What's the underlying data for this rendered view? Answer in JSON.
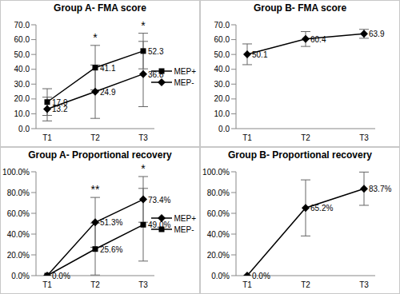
{
  "chart_data": [
    {
      "type": "line",
      "title": "Group A- FMA score",
      "categories": [
        "T1",
        "T2",
        "T3"
      ],
      "series": [
        {
          "name": "MEP+",
          "color": "#000000",
          "marker": "square",
          "values": [
            17.9,
            41.1,
            52.3
          ],
          "errors": [
            9,
            15,
            12
          ]
        },
        {
          "name": "MEP-",
          "color": "#000000",
          "marker": "diamond",
          "values": [
            13.2,
            24.9,
            36.8
          ],
          "errors": [
            8,
            18,
            22
          ]
        }
      ],
      "ylim": [
        0,
        70
      ],
      "yticks": [
        {
          "value": 0,
          "label": "0.0"
        },
        {
          "value": 10,
          "label": "10.0"
        },
        {
          "value": 20,
          "label": "20.0"
        },
        {
          "value": 30,
          "label": "30.0"
        },
        {
          "value": 40,
          "label": "40.0"
        },
        {
          "value": 50,
          "label": "50.0"
        },
        {
          "value": 60,
          "label": "60.0"
        },
        {
          "value": 70,
          "label": "70.0"
        }
      ],
      "data_labels": true,
      "legend": "right",
      "annotations": [
        {
          "x": "T2",
          "text": "*"
        },
        {
          "x": "T3",
          "text": "*"
        }
      ]
    },
    {
      "type": "line",
      "title": "Group B- FMA score",
      "categories": [
        "T1",
        "T2",
        "T3"
      ],
      "series": [
        {
          "name": "Group B",
          "color": "#000000",
          "marker": "diamond",
          "values": [
            50.1,
            60.4,
            63.9
          ],
          "errors": [
            7,
            5,
            3
          ]
        }
      ],
      "ylim": [
        0,
        70
      ],
      "yticks": [
        {
          "value": 0,
          "label": "0.0"
        },
        {
          "value": 10,
          "label": "10.0"
        },
        {
          "value": 20,
          "label": "20.0"
        },
        {
          "value": 30,
          "label": "30.0"
        },
        {
          "value": 40,
          "label": "40.0"
        },
        {
          "value": 50,
          "label": "50.0"
        },
        {
          "value": 60,
          "label": "60.0"
        },
        {
          "value": 70,
          "label": "70.0"
        }
      ],
      "data_labels": true
    },
    {
      "type": "line",
      "title": "Group A- Proportional recovery",
      "categories": [
        "T1",
        "T2",
        "T3"
      ],
      "series": [
        {
          "name": "MEP+",
          "color": "#000000",
          "marker": "diamond",
          "values": [
            0,
            51.3,
            73.4
          ],
          "errors": [
            0,
            24,
            22
          ],
          "value_labels": [
            "0.0%",
            "51.3%",
            "73.4%"
          ]
        },
        {
          "name": "MEP-",
          "color": "#000000",
          "marker": "square",
          "values": [
            0,
            25.6,
            49.0
          ],
          "errors": [
            0,
            25,
            35
          ],
          "value_labels": [
            null,
            "25.6%",
            "49.0%"
          ]
        }
      ],
      "ylim": [
        0,
        100
      ],
      "yticks": [
        {
          "value": 0,
          "label": "0.0%"
        },
        {
          "value": 20,
          "label": "20.0%"
        },
        {
          "value": 40,
          "label": "40.0%"
        },
        {
          "value": 60,
          "label": "60.0%"
        },
        {
          "value": 80,
          "label": "80.0%"
        },
        {
          "value": 100,
          "label": "100.0%"
        }
      ],
      "data_labels": true,
      "legend": "right",
      "annotations": [
        {
          "x": "T2",
          "text": "**"
        },
        {
          "x": "T3",
          "text": "*"
        }
      ]
    },
    {
      "type": "line",
      "title": "Group B- Proportional recovery",
      "categories": [
        "T1",
        "T2",
        "T3"
      ],
      "series": [
        {
          "name": "Group B",
          "color": "#000000",
          "marker": "diamond",
          "values": [
            0,
            65.2,
            83.7
          ],
          "errors": [
            0,
            27,
            16
          ],
          "value_labels": [
            "0.0%",
            "65.2%",
            "83.7%"
          ]
        }
      ],
      "ylim": [
        0,
        100
      ],
      "yticks": [
        {
          "value": 0,
          "label": "0.0%"
        },
        {
          "value": 20,
          "label": "20.0%"
        },
        {
          "value": 40,
          "label": "40.0%"
        },
        {
          "value": 60,
          "label": "60.0%"
        },
        {
          "value": 80,
          "label": "80.0%"
        },
        {
          "value": 100,
          "label": "100.0%"
        }
      ],
      "data_labels": true
    }
  ]
}
